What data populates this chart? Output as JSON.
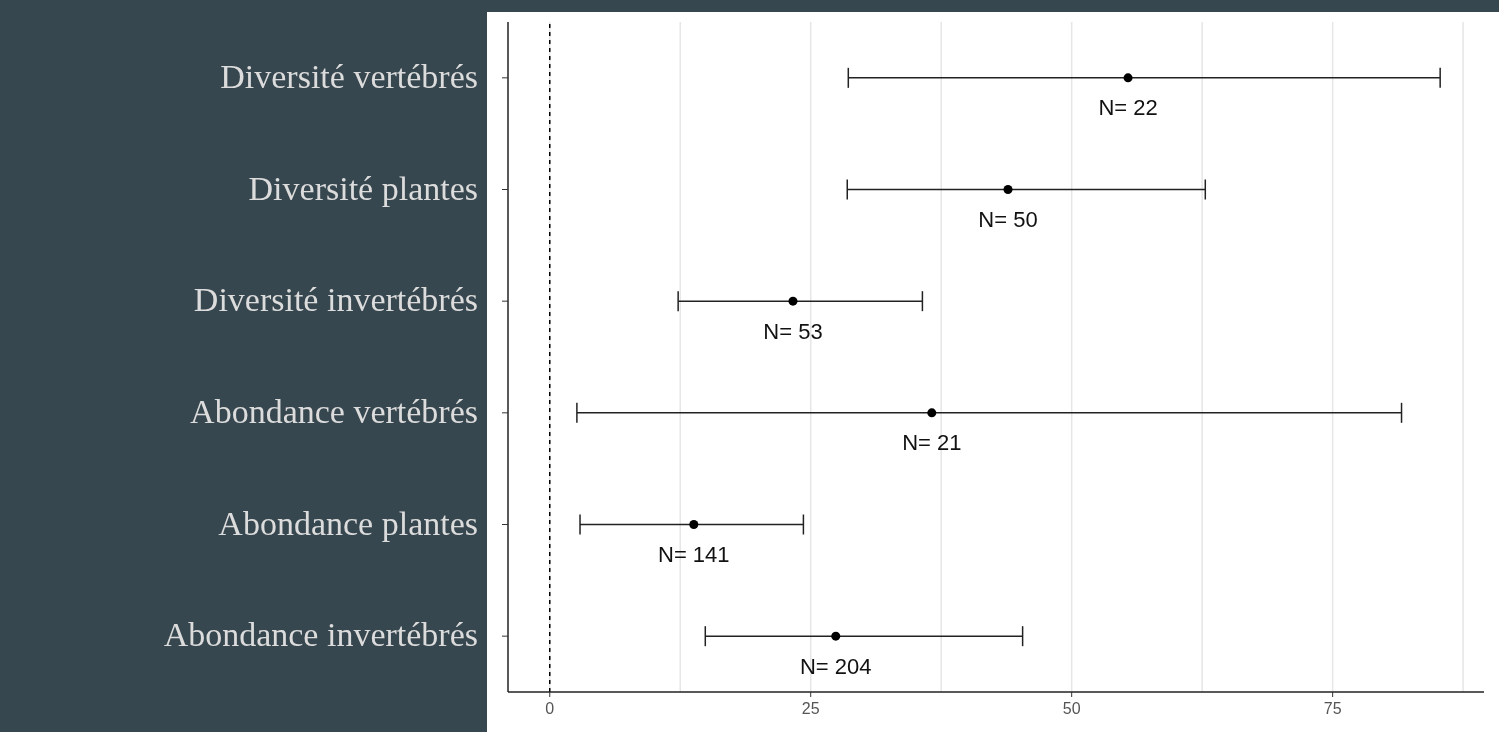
{
  "chart_data": {
    "type": "scatter",
    "orientation": "horizontal",
    "categories": [
      "Diversité vertébrés",
      "Diversité plantes",
      "Diversité invertébrés",
      "Abondance vertébrés",
      "Abondance plantes",
      "Abondance invertébrés"
    ],
    "values": [
      55.4,
      43.9,
      23.3,
      36.6,
      13.8,
      27.4
    ],
    "errors": [
      [
        28.6,
        85.3
      ],
      [
        28.5,
        62.8
      ],
      [
        12.3,
        35.7
      ],
      [
        2.6,
        81.6
      ],
      [
        2.9,
        24.3
      ],
      [
        14.9,
        45.3
      ]
    ],
    "color": "#000000",
    "marker": "circle",
    "xlim": [
      -4,
      89.5
    ],
    "xticks": [
      0,
      {
        "value": 12.5,
        "label": null
      },
      25,
      {
        "value": 37.5,
        "label": null
      },
      50,
      {
        "value": 62.5,
        "label": null
      },
      75,
      {
        "value": 87.5,
        "label": null
      }
    ],
    "grid": "x",
    "ref_lines": [
      {
        "axis": "x",
        "value": 0,
        "line_style": "dashed",
        "color": "#000000"
      }
    ],
    "annotations": [
      {
        "text": "N= 22",
        "x": 55.4,
        "y": "Diversité vertébrés"
      },
      {
        "text": "N= 50",
        "x": 43.9,
        "y": "Diversité plantes"
      },
      {
        "text": "N= 53",
        "x": 23.3,
        "y": "Diversité invertébrés"
      },
      {
        "text": "N= 21",
        "x": 36.6,
        "y": "Abondance vertébrés"
      },
      {
        "text": "N= 141",
        "x": 13.8,
        "y": "Abondance plantes"
      },
      {
        "text": "N= 204",
        "x": 27.4,
        "y": "Abondance invertébrés"
      }
    ]
  }
}
